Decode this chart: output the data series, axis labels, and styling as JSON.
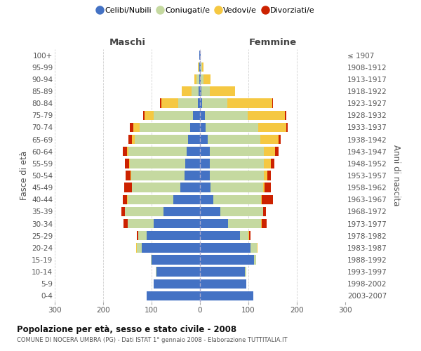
{
  "age_groups": [
    "0-4",
    "5-9",
    "10-14",
    "15-19",
    "20-24",
    "25-29",
    "30-34",
    "35-39",
    "40-44",
    "45-49",
    "50-54",
    "55-59",
    "60-64",
    "65-69",
    "70-74",
    "75-79",
    "80-84",
    "85-89",
    "90-94",
    "95-99",
    "100+"
  ],
  "birth_years": [
    "2003-2007",
    "1998-2002",
    "1993-1997",
    "1988-1992",
    "1983-1987",
    "1978-1982",
    "1973-1977",
    "1968-1972",
    "1963-1967",
    "1958-1962",
    "1953-1957",
    "1948-1952",
    "1943-1947",
    "1938-1942",
    "1933-1937",
    "1928-1932",
    "1923-1927",
    "1918-1922",
    "1913-1917",
    "1908-1912",
    "≤ 1907"
  ],
  "colors": {
    "celibe": "#4472C4",
    "coniugato": "#c5d9a0",
    "vedovo": "#f5c842",
    "divorziato": "#cc2200"
  },
  "maschi": {
    "celibe": [
      110,
      95,
      90,
      100,
      120,
      110,
      95,
      75,
      55,
      40,
      32,
      30,
      28,
      25,
      20,
      15,
      5,
      3,
      2,
      1,
      1
    ],
    "coniugato": [
      0,
      0,
      2,
      2,
      10,
      18,
      55,
      80,
      95,
      100,
      110,
      115,
      120,
      110,
      105,
      80,
      40,
      15,
      5,
      2,
      0
    ],
    "vedovo": [
      0,
      0,
      0,
      0,
      2,
      0,
      0,
      0,
      1,
      1,
      2,
      2,
      3,
      5,
      12,
      20,
      35,
      20,
      5,
      2,
      0
    ],
    "divorziato": [
      0,
      0,
      0,
      0,
      0,
      3,
      8,
      8,
      8,
      15,
      10,
      8,
      8,
      8,
      8,
      3,
      2,
      0,
      0,
      0,
      0
    ]
  },
  "femmine": {
    "nubile": [
      110,
      95,
      93,
      112,
      105,
      82,
      58,
      42,
      28,
      22,
      20,
      20,
      20,
      16,
      12,
      10,
      5,
      3,
      2,
      2,
      1
    ],
    "coniugata": [
      0,
      0,
      2,
      4,
      12,
      18,
      68,
      88,
      98,
      108,
      112,
      112,
      112,
      108,
      108,
      88,
      52,
      18,
      5,
      2,
      0
    ],
    "vedova": [
      0,
      0,
      0,
      0,
      2,
      1,
      1,
      1,
      2,
      4,
      7,
      14,
      23,
      38,
      58,
      78,
      92,
      52,
      15,
      3,
      0
    ],
    "divorziata": [
      0,
      0,
      0,
      0,
      0,
      3,
      10,
      5,
      22,
      12,
      8,
      8,
      8,
      5,
      3,
      2,
      2,
      0,
      0,
      0,
      0
    ]
  },
  "title": "Popolazione per età, sesso e stato civile - 2008",
  "subtitle": "COMUNE DI NOCERA UMBRA (PG) - Dati ISTAT 1° gennaio 2008 - Elaborazione TUTTITALIA.IT",
  "xlabel_left": "Maschi",
  "xlabel_right": "Femmine",
  "ylabel_left": "Fasce di età",
  "ylabel_right": "Anni di nascita",
  "xlim": 300,
  "legend_labels": [
    "Celibi/Nubili",
    "Coniugati/e",
    "Vedovi/e",
    "Divorziati/e"
  ],
  "bg_color": "#ffffff",
  "grid_color": "#cccccc"
}
